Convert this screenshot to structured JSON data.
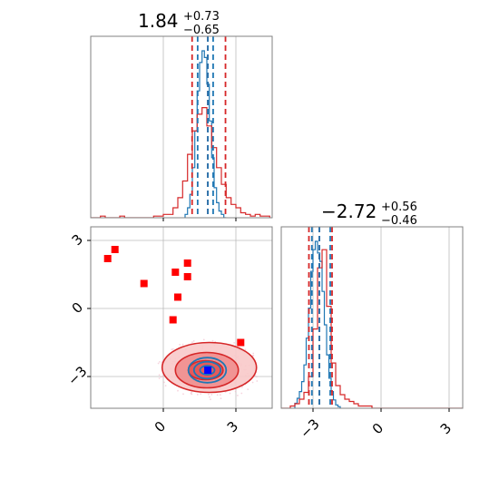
{
  "chart_data": {
    "type": "corner",
    "colors": {
      "series_a": "#d62728",
      "series_b": "#1f77b4",
      "marker_red": "#ff0000",
      "marker_blue": "#0000ff",
      "grid": "#bbbbbb",
      "frame": "#808080"
    },
    "grid": true,
    "parameters": [
      {
        "index": 0,
        "median": 1.84,
        "plus": 0.73,
        "minus": 0.65,
        "title_main": "1.84",
        "title_plus": "+0.73",
        "title_minus": "−0.65",
        "range": [
          -3,
          4.5
        ],
        "ticks": [
          0,
          3
        ],
        "tick_labels": [
          "0",
          "3"
        ]
      },
      {
        "index": 1,
        "median": -2.72,
        "plus": 0.56,
        "minus": 0.46,
        "title_main": "−2.72",
        "title_plus": "+0.56",
        "title_minus": "−0.46",
        "range": [
          -4.4,
          3.6
        ],
        "ticks": [
          -3,
          0,
          3
        ],
        "tick_labels": [
          "−3",
          "0",
          "3"
        ]
      }
    ],
    "hist_1d": [
      {
        "red": {
          "bins": [
            -3.0,
            -2.8,
            -2.6,
            -2.4,
            -2.2,
            -2.0,
            -1.8,
            -1.6,
            -1.4,
            -1.2,
            -1.0,
            -0.8,
            -0.6,
            -0.4,
            -0.2,
            0.0,
            0.2,
            0.4,
            0.6,
            0.8,
            1.0,
            1.2,
            1.4,
            1.6,
            1.8,
            2.0,
            2.2,
            2.4,
            2.6,
            2.8,
            3.0,
            3.2,
            3.4,
            3.6,
            3.8,
            4.0,
            4.2,
            4.4
          ],
          "counts": [
            0,
            0,
            0.01,
            0,
            0,
            0,
            0.01,
            0,
            0,
            0,
            0,
            0,
            0,
            0.01,
            0.01,
            0.02,
            0.02,
            0.06,
            0.12,
            0.22,
            0.38,
            0.52,
            0.62,
            0.66,
            0.55,
            0.42,
            0.3,
            0.2,
            0.12,
            0.08,
            0.06,
            0.03,
            0.02,
            0.01,
            0.02,
            0.01,
            0.01
          ]
        },
        "blue": {
          "bins": [
            0.9,
            1.0,
            1.1,
            1.2,
            1.3,
            1.4,
            1.5,
            1.6,
            1.7,
            1.8,
            1.9,
            2.0,
            2.1,
            2.2,
            2.3,
            2.4,
            2.5,
            2.6
          ],
          "counts": [
            0.02,
            0.06,
            0.14,
            0.3,
            0.52,
            0.76,
            0.93,
            1.0,
            0.96,
            0.8,
            0.58,
            0.36,
            0.18,
            0.09,
            0.04,
            0.02,
            0
          ]
        },
        "red_quantiles": [
          1.19,
          1.84,
          2.57
        ],
        "blue_quantiles": [
          1.42,
          1.84,
          2.06
        ]
      },
      {
        "red": {
          "bins": [
            -4.4,
            -4.2,
            -4.0,
            -3.8,
            -3.6,
            -3.4,
            -3.2,
            -3.0,
            -2.8,
            -2.6,
            -2.4,
            -2.2,
            -2.0,
            -1.8,
            -1.6,
            -1.4,
            -1.2,
            -1.0,
            -0.8,
            -0.6,
            -0.4,
            -0.2,
            0.0,
            0.2,
            0.4,
            0.6,
            0.8,
            1.0,
            1.2,
            1.4,
            1.6,
            1.8,
            2.0,
            2.2,
            2.4,
            2.6,
            2.8,
            3.0,
            3.2,
            3.4,
            3.6
          ],
          "counts": [
            0,
            0,
            0.01,
            0.02,
            0.04,
            0.07,
            0.14,
            0.35,
            0.62,
            0.7,
            0.45,
            0.2,
            0.1,
            0.06,
            0.04,
            0.03,
            0.02,
            0.01,
            0.01,
            0.01,
            0,
            0,
            0,
            0,
            0,
            0,
            0,
            0,
            0,
            0,
            0,
            0,
            0,
            0,
            0,
            0,
            0,
            0,
            0,
            0
          ]
        },
        "blue": {
          "bins": [
            -3.8,
            -3.7,
            -3.6,
            -3.5,
            -3.4,
            -3.3,
            -3.2,
            -3.1,
            -3.0,
            -2.9,
            -2.8,
            -2.7,
            -2.6,
            -2.5,
            -2.4,
            -2.3,
            -2.2,
            -2.1,
            -2.0,
            -1.9,
            -1.8
          ],
          "counts": [
            0.03,
            0.06,
            0.1,
            0.16,
            0.26,
            0.42,
            0.6,
            0.82,
            0.95,
            1.0,
            0.93,
            0.88,
            0.7,
            0.5,
            0.32,
            0.18,
            0.1,
            0.05,
            0.02,
            0.01
          ]
        },
        "red_quantiles": [
          -3.18,
          -2.72,
          -2.16
        ],
        "blue_quantiles": [
          -3.05,
          -2.72,
          -2.24
        ]
      }
    ],
    "scatter_2d": {
      "red_squares": [
        [
          -2.3,
          2.2
        ],
        [
          -2.0,
          2.6
        ],
        [
          -0.8,
          1.1
        ],
        [
          0.5,
          1.6
        ],
        [
          1.0,
          2.0
        ],
        [
          1.0,
          1.4
        ],
        [
          0.6,
          0.5
        ],
        [
          0.4,
          -0.5
        ],
        [
          3.2,
          -1.5
        ]
      ],
      "blue_square": [
        1.84,
        -2.72
      ],
      "red_contours": [
        {
          "cx": 1.75,
          "cy": -2.72,
          "rx": 0.72,
          "ry": 0.42,
          "level": 0.39
        },
        {
          "cx": 1.8,
          "cy": -2.72,
          "rx": 1.3,
          "ry": 0.78,
          "level": 0.86
        },
        {
          "cx": 1.9,
          "cy": -2.6,
          "rx": 1.95,
          "ry": 1.1,
          "level": 0.99
        }
      ],
      "blue_contours": [
        {
          "cx": 1.82,
          "cy": -2.72,
          "rx": 0.3,
          "ry": 0.2
        },
        {
          "cx": 1.82,
          "cy": -2.72,
          "rx": 0.55,
          "ry": 0.37
        },
        {
          "cx": 1.82,
          "cy": -2.72,
          "rx": 0.78,
          "ry": 0.55
        }
      ]
    }
  }
}
